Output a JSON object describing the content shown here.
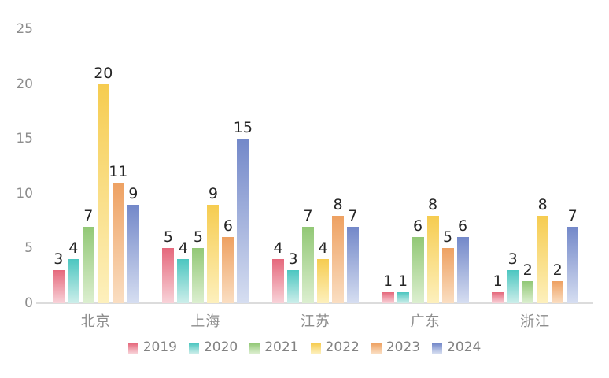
{
  "chart_data": {
    "type": "bar",
    "title": "",
    "xlabel": "",
    "ylabel": "",
    "categories": [
      "北京",
      "上海",
      "江苏",
      "广东",
      "浙江"
    ],
    "series": [
      {
        "name": "2019",
        "color": "#e5687c",
        "color_light": "#f8d3d9",
        "values": [
          3,
          5,
          4,
          1,
          1
        ]
      },
      {
        "name": "2020",
        "color": "#4cc6c0",
        "color_light": "#cdeeea",
        "values": [
          4,
          4,
          3,
          1,
          3
        ]
      },
      {
        "name": "2021",
        "color": "#92c876",
        "color_light": "#dcefd0",
        "values": [
          7,
          5,
          7,
          6,
          2
        ]
      },
      {
        "name": "2022",
        "color": "#f6cc50",
        "color_light": "#fdf0bd",
        "values": [
          20,
          9,
          4,
          8,
          8
        ]
      },
      {
        "name": "2023",
        "color": "#eea162",
        "color_light": "#fadec2",
        "values": [
          11,
          6,
          8,
          5,
          2
        ]
      },
      {
        "name": "2024",
        "color": "#7388c9",
        "color_light": "#d6def1",
        "values": [
          9,
          15,
          7,
          6,
          7
        ]
      }
    ],
    "ylim": [
      0,
      25
    ],
    "yticks": [
      0,
      5,
      10,
      15,
      20,
      25
    ],
    "grid": false,
    "legend_position": "bottom",
    "value_labels": true
  },
  "style_colors": {
    "axis_text": "#8c8c8c",
    "value_label": "#262626",
    "baseline": "#dcdcdc",
    "background": "#ffffff"
  }
}
